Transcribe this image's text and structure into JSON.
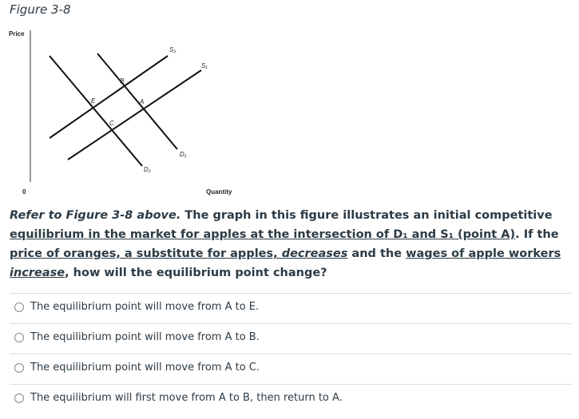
{
  "figure": {
    "title": "Figure 3-8",
    "y_label": "Price",
    "x_label": "Quantity",
    "origin": "0",
    "curves": {
      "s2": "S₂",
      "s1": "S₁",
      "d1": "D₁",
      "d2": "D₂"
    },
    "points": {
      "b": "B",
      "e": "E",
      "a": "A",
      "c": "C"
    }
  },
  "question": {
    "parts": [
      "Refer to Figure 3-8 above.",
      " The graph in this figure illustrates an initial competitive ",
      "equilibrium in the market for apples at the intersection of D₁ and S₁ (point A)",
      ". If the ",
      "price of oranges, a substitute for apples, ",
      "decreases",
      " and the ",
      "wages of apple workers ",
      "increase",
      ", how will the equilibrium point change?"
    ]
  },
  "options": [
    "The equilibrium point will move from A to E.",
    "The equilibrium point will move from A to B.",
    "The equilibrium point will move from A to C.",
    "The equilibrium will first move from A to B, then return to A."
  ]
}
